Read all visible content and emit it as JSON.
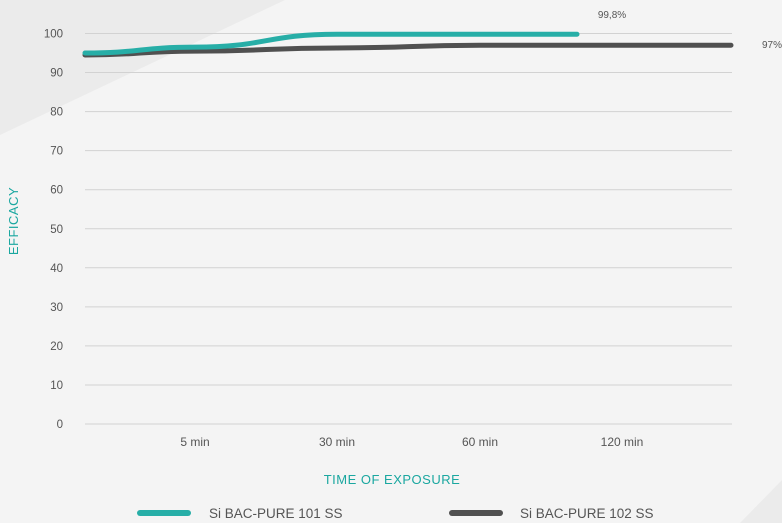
{
  "chart_data": {
    "type": "line",
    "xlabel": "TIME OF EXPOSURE",
    "ylabel": "EFFICACY",
    "ylim": [
      0,
      100
    ],
    "yticks": [
      0,
      10,
      20,
      30,
      40,
      50,
      60,
      70,
      80,
      90,
      100
    ],
    "x_tick_labels": [
      "5 min",
      "30 min",
      "60 min",
      "120 min"
    ],
    "grid": "horizontal",
    "legend_position": "bottom",
    "series": [
      {
        "name": "Si BAC-PURE 101 SS",
        "color": "#27aea7",
        "x": [
          "start",
          "5 min",
          "30 min",
          "60 min",
          "120 min"
        ],
        "values": [
          95,
          96.5,
          99.8,
          99.8,
          99.8
        ],
        "end_label": "99,8%"
      },
      {
        "name": "Si BAC-PURE 102 SS",
        "color": "#505050",
        "x": [
          "start",
          "5 min",
          "30 min",
          "60 min",
          "120 min",
          "end"
        ],
        "values": [
          94.5,
          95.5,
          96.3,
          97,
          97,
          97
        ],
        "end_label": "97%"
      }
    ]
  }
}
